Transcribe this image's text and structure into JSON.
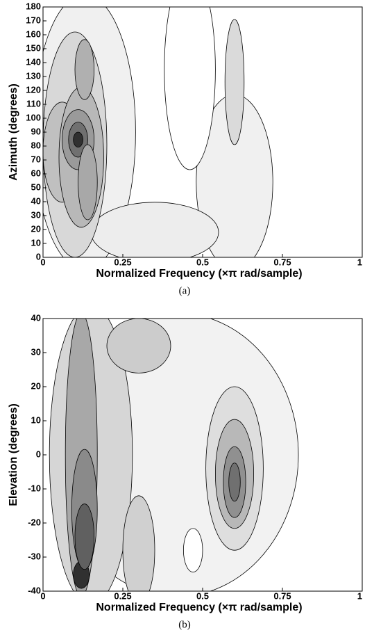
{
  "chart_data": [
    {
      "type": "contour",
      "xlabel": "Normalized Frequency (×π rad/sample)",
      "ylabel": "Azimuth (degrees)",
      "caption": "(a)",
      "xlim": [
        0,
        1
      ],
      "xticks": [
        0,
        0.25,
        0.5,
        0.75,
        1
      ],
      "ylim": [
        0,
        180
      ],
      "yticks": [
        0,
        10,
        20,
        30,
        40,
        50,
        60,
        70,
        80,
        90,
        100,
        110,
        120,
        130,
        140,
        150,
        160,
        170,
        180
      ]
    },
    {
      "type": "contour",
      "xlabel": "Normalized Frequency (×π rad/sample)",
      "ylabel": "Elevation (degrees)",
      "caption": "(b)",
      "xlim": [
        0,
        1
      ],
      "xticks": [
        0,
        0.25,
        0.5,
        0.75,
        1
      ],
      "ylim": [
        -40,
        40
      ],
      "yticks": [
        -40,
        -30,
        -20,
        -10,
        0,
        10,
        20,
        30,
        40
      ]
    }
  ]
}
